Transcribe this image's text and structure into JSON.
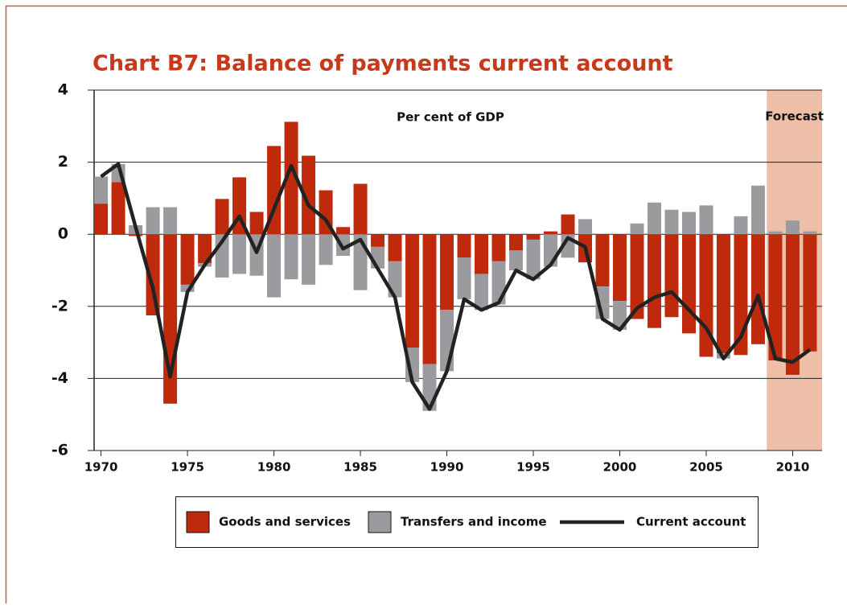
{
  "chart_data": {
    "type": "bar_line",
    "title": "Chart B7: Balance of payments current account",
    "subtitle": "Per cent of GDP",
    "annotations": [
      {
        "text": "Forecast",
        "x": [
          2008.5,
          2011.7
        ],
        "color": "#eebfa8"
      }
    ],
    "x": [
      1970,
      1971,
      1972,
      1973,
      1974,
      1975,
      1976,
      1977,
      1978,
      1979,
      1980,
      1981,
      1982,
      1983,
      1984,
      1985,
      1986,
      1987,
      1988,
      1989,
      1990,
      1991,
      1992,
      1993,
      1994,
      1995,
      1996,
      1997,
      1998,
      1999,
      2000,
      2001,
      2002,
      2003,
      2004,
      2005,
      2006,
      2007,
      2008,
      2009,
      2010,
      2011
    ],
    "series": [
      {
        "name": "Goods and services",
        "kind": "bar",
        "color": "#c02a0c",
        "values": [
          0.85,
          1.45,
          -0.05,
          -2.25,
          -4.7,
          -1.4,
          -0.8,
          0.98,
          1.58,
          0.62,
          2.45,
          3.12,
          2.18,
          1.22,
          0.2,
          1.4,
          -0.35,
          -0.75,
          -3.15,
          -3.6,
          -2.1,
          -0.65,
          -1.1,
          -0.75,
          -0.45,
          -0.15,
          0.08,
          0.55,
          -0.78,
          -1.45,
          -1.85,
          -2.35,
          -2.6,
          -2.3,
          -2.75,
          -3.4,
          -3.3,
          -3.35,
          -3.05,
          -3.5,
          -3.9,
          -3.25
        ]
      },
      {
        "name": "Transfers and income",
        "kind": "bar",
        "color": "#9b9b9f",
        "values": [
          0.75,
          0.5,
          0.25,
          0.75,
          0.75,
          -0.2,
          -0.1,
          -1.2,
          -1.1,
          -1.15,
          -1.75,
          -1.25,
          -1.4,
          -0.85,
          -0.6,
          -1.55,
          -0.6,
          -1.0,
          -0.95,
          -1.3,
          -1.7,
          -1.15,
          -1.0,
          -1.2,
          -0.55,
          -1.1,
          -0.9,
          -0.65,
          0.42,
          -0.9,
          -0.8,
          0.3,
          0.88,
          0.68,
          0.62,
          0.8,
          -0.15,
          0.5,
          1.35,
          0.08,
          0.38,
          0.08
        ]
      },
      {
        "name": "Current account",
        "kind": "line",
        "color": "#222222",
        "values": [
          1.6,
          1.95,
          0.2,
          -1.5,
          -3.95,
          -1.6,
          -0.85,
          -0.2,
          0.5,
          -0.5,
          0.7,
          1.9,
          0.8,
          0.4,
          -0.4,
          -0.15,
          -0.95,
          -1.75,
          -4.1,
          -4.85,
          -3.8,
          -1.8,
          -2.1,
          -1.9,
          -1.0,
          -1.25,
          -0.85,
          -0.1,
          -0.35,
          -2.35,
          -2.65,
          -2.05,
          -1.75,
          -1.6,
          -2.1,
          -2.6,
          -3.45,
          -2.85,
          -1.7,
          -3.45,
          -3.55,
          -3.2
        ]
      }
    ],
    "xlim": [
      1969.6,
      2011.7
    ],
    "xticks": [
      1970,
      1975,
      1980,
      1985,
      1990,
      1995,
      2000,
      2005,
      2010
    ],
    "ylim": [
      -6,
      4
    ],
    "yticks": [
      4,
      2,
      0,
      -2,
      -4,
      -6
    ],
    "grid": true,
    "legend": "bottom"
  }
}
